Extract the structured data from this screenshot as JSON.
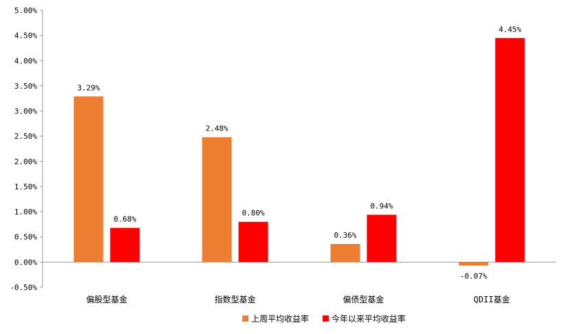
{
  "colors": {
    "weekly": "#ED7D31",
    "ytd": "#FF0000"
  },
  "chart_data": {
    "type": "bar",
    "categories": [
      "偏股型基金",
      "指数型基金",
      "偏债型基金",
      "QDII基金"
    ],
    "series": [
      {
        "name": "上周平均收益率",
        "values": [
          3.29,
          2.48,
          0.36,
          -0.07
        ],
        "labels": [
          "3.29%",
          "2.48%",
          "0.36%",
          "-0.07%"
        ]
      },
      {
        "name": "今年以来平均收益率",
        "values": [
          0.68,
          0.8,
          0.94,
          4.45
        ],
        "labels": [
          "0.68%",
          "0.80%",
          "0.94%",
          "4.45%"
        ]
      }
    ],
    "yticks": [
      "5.00%",
      "4.50%",
      "4.00%",
      "3.50%",
      "3.00%",
      "2.50%",
      "2.00%",
      "1.50%",
      "1.00%",
      "0.50%",
      "0.00%",
      "-0.50%"
    ],
    "ylim": [
      -0.5,
      5.0
    ],
    "title": "",
    "xlabel": "",
    "ylabel": "",
    "grid": false,
    "legend": "bottom"
  }
}
